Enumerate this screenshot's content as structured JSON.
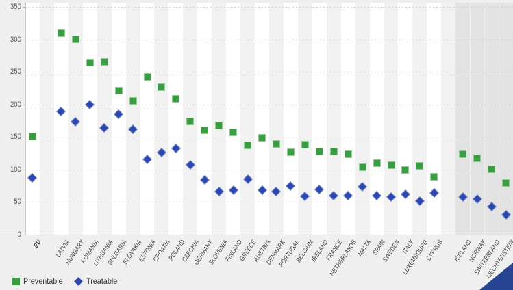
{
  "page": {
    "background": "#efefef",
    "plot_background_light": "#f1f1f1",
    "plot_background_white": "#ffffff",
    "efta_section_background": "#e3e3e3"
  },
  "legend": {
    "items": [
      {
        "label": "Preventable",
        "marker": "square-icon",
        "color": "#3a9d41"
      },
      {
        "label": "Treatable",
        "marker": "diamond-icon",
        "color": "#2b48ae"
      }
    ]
  },
  "decor": {
    "corner_triangle_color": "#274493"
  },
  "chart_data": {
    "type": "scatter",
    "title": "",
    "xlabel": "",
    "ylabel": "",
    "ylim": [
      0,
      350
    ],
    "yticks": [
      0,
      50,
      100,
      150,
      200,
      250,
      300,
      350
    ],
    "grid": "horizontal-dotted",
    "legend_position": "bottom-left",
    "categories": [
      "EU",
      "LATVIA",
      "HUNGARY",
      "ROMANIA",
      "LITHUANIA",
      "BULGARIA",
      "SLOVAKIA",
      "ESTONIA",
      "CROATIA",
      "POLAND",
      "CZECHIA",
      "GERMANY",
      "SLOVENIA",
      "FINLAND",
      "GREECE",
      "AUSTRIA",
      "DENMARK",
      "PORTUGAL",
      "BELGIUM",
      "IRELAND",
      "FRANCE",
      "NETHERLANDS",
      "MALTA",
      "SPAIN",
      "SWEDEN",
      "ITALY",
      "LUXEMBOURG",
      "CYPRUS",
      "ICELAND",
      "NORWAY",
      "SWITZERLAND",
      "LIECHTENSTEIN"
    ],
    "eu_aggregate": "EU",
    "efta_countries": [
      "ICELAND",
      "NORWAY",
      "SWITZERLAND",
      "LIECHTENSTEIN"
    ],
    "series": [
      {
        "name": "Preventable",
        "marker": "square",
        "color": "#3a9d41",
        "values": [
          151,
          310,
          300,
          264,
          265,
          221,
          206,
          242,
          226,
          209,
          174,
          160,
          168,
          157,
          137,
          149,
          139,
          127,
          138,
          128,
          128,
          123,
          104,
          110,
          107,
          99,
          106,
          89,
          123,
          117,
          100,
          79
        ]
      },
      {
        "name": "Treatable",
        "marker": "diamond",
        "color": "#2b48ae",
        "values": [
          87,
          189,
          173,
          200,
          164,
          185,
          162,
          116,
          126,
          132,
          107,
          84,
          66,
          68,
          85,
          68,
          66,
          75,
          59,
          69,
          60,
          60,
          74,
          60,
          58,
          62,
          51,
          64,
          58,
          55,
          43,
          31
        ]
      }
    ]
  }
}
